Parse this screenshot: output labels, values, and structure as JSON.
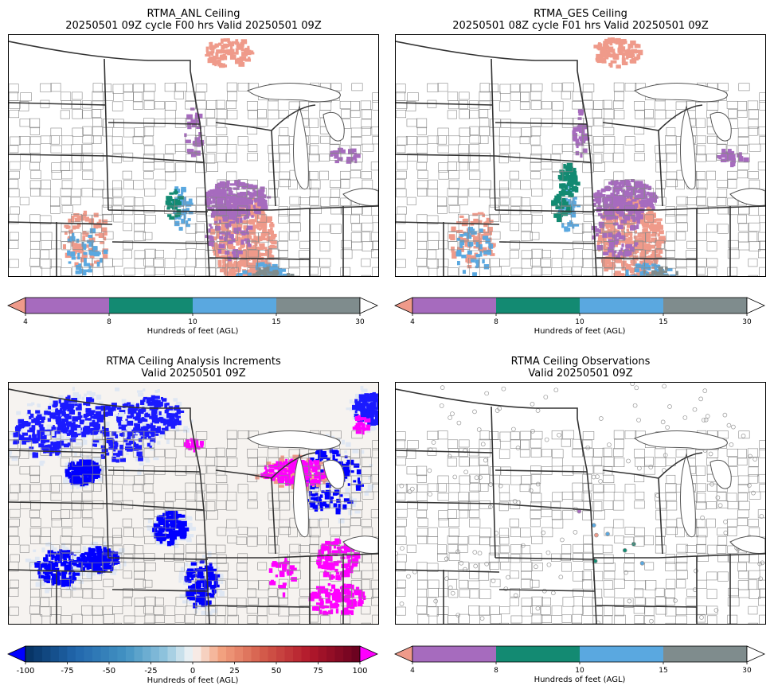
{
  "panels": [
    {
      "title1": "RTMA_ANL Ceiling",
      "title2": "20250501 09Z cycle F00 hrs Valid 20250501 09Z"
    },
    {
      "title1": "RTMA_GES Ceiling",
      "title2": "20250501 08Z cycle F01 hrs Valid 20250501 09Z"
    },
    {
      "title1": "RTMA Ceiling Analysis Increments",
      "title2": "Valid 20250501 09Z"
    },
    {
      "title1": "RTMA Ceiling Observations",
      "title2": "Valid 20250501 09Z"
    }
  ],
  "ceiling_colorbar": {
    "label": "Hundreds of feet (AGL)",
    "ticks": [
      "4",
      "8",
      "10",
      "15",
      "30"
    ],
    "colors": {
      "under": "#ef9a8a",
      "c4_8": "#a66bbe",
      "c8_10": "#138a72",
      "c10_15": "#5aa8e0",
      "c15_30": "#7f8c8d",
      "over": "#ffffff"
    }
  },
  "increment_colorbar": {
    "label": "Hundreds of feet (AGL)",
    "ticks": [
      "-100",
      "-75",
      "-50",
      "-25",
      "0",
      "25",
      "50",
      "75",
      "100"
    ],
    "colors": {
      "under": "#0000ff",
      "over": "#ff00ff"
    }
  }
}
